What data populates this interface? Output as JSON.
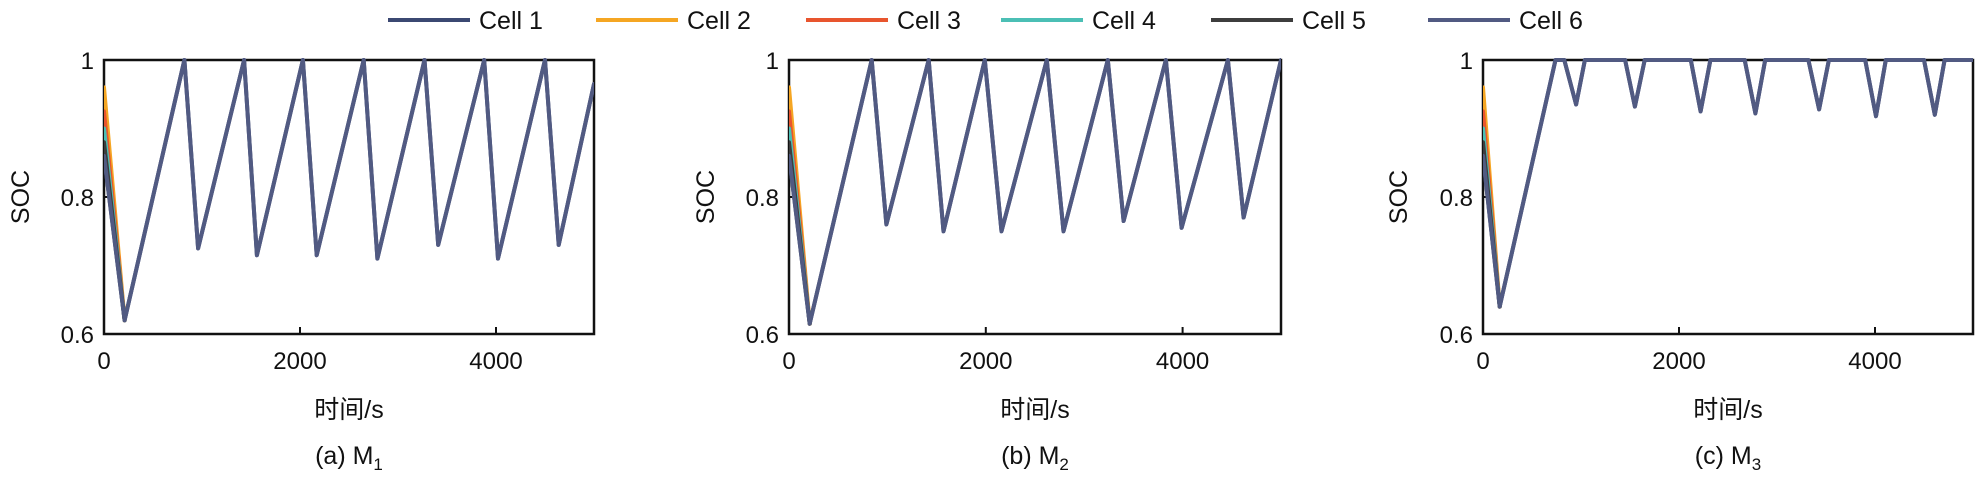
{
  "chart_data": [
    {
      "type": "line",
      "caption": "(a) M",
      "caption_sub": "1",
      "xlabel": "时间/s",
      "ylabel": "SOC",
      "xlim": [
        0,
        5000
      ],
      "ylim": [
        0.6,
        1.0
      ],
      "xticks": [
        0,
        2000,
        4000
      ],
      "yticks": [
        0.6,
        0.8,
        1.0
      ],
      "ytick_labels": [
        "0.6",
        "0.8",
        "1"
      ],
      "grid": false,
      "legend_position": "top",
      "series": [
        {
          "name": "Cell 1",
          "color": "#3b4872",
          "x": [
            0,
            210,
            820,
            960,
            1430,
            1560,
            2030,
            2170,
            2650,
            2790,
            3270,
            3410,
            3880,
            4020,
            4500,
            4640,
            5000
          ],
          "y": [
            0.86,
            0.62,
            1.0,
            0.725,
            1.0,
            0.715,
            1.0,
            0.715,
            1.0,
            0.71,
            1.0,
            0.73,
            1.0,
            0.71,
            1.0,
            0.73,
            0.965
          ]
        },
        {
          "name": "Cell 2",
          "color": "#f5a623",
          "x": [
            0,
            210
          ],
          "y": [
            0.96,
            0.62
          ]
        },
        {
          "name": "Cell 3",
          "color": "#e8552e",
          "x": [
            0,
            210
          ],
          "y": [
            0.925,
            0.62
          ]
        },
        {
          "name": "Cell 4",
          "color": "#4bbfb5",
          "x": [
            0,
            210
          ],
          "y": [
            0.9,
            0.62
          ]
        },
        {
          "name": "Cell 5",
          "color": "#3d3d3d",
          "x": [
            0,
            210
          ],
          "y": [
            0.88,
            0.62
          ]
        },
        {
          "name": "Cell 6",
          "color": "#515a82",
          "x": [
            0,
            210,
            820,
            960,
            1430,
            1560,
            2030,
            2170,
            2650,
            2790,
            3270,
            3410,
            3880,
            4020,
            4500,
            4640,
            5000
          ],
          "y": [
            0.86,
            0.62,
            1.0,
            0.725,
            1.0,
            0.715,
            1.0,
            0.715,
            1.0,
            0.71,
            1.0,
            0.73,
            1.0,
            0.71,
            1.0,
            0.73,
            0.965
          ]
        }
      ]
    },
    {
      "type": "line",
      "caption": "(b) M",
      "caption_sub": "2",
      "xlabel": "时间/s",
      "ylabel": "SOC",
      "xlim": [
        0,
        5000
      ],
      "ylim": [
        0.6,
        1.0
      ],
      "xticks": [
        0,
        2000,
        4000
      ],
      "yticks": [
        0.6,
        0.8,
        1.0
      ],
      "ytick_labels": [
        "0.6",
        "0.8",
        "1"
      ],
      "grid": false,
      "legend_position": "top",
      "series": [
        {
          "name": "Cell 1",
          "color": "#3b4872",
          "x": [
            0,
            210,
            840,
            990,
            1420,
            1570,
            1990,
            2160,
            2620,
            2790,
            3240,
            3400,
            3830,
            3990,
            4460,
            4620,
            5000
          ],
          "y": [
            0.86,
            0.615,
            1.0,
            0.76,
            1.0,
            0.75,
            1.0,
            0.75,
            1.0,
            0.75,
            1.0,
            0.765,
            1.0,
            0.755,
            1.0,
            0.77,
            1.0
          ]
        },
        {
          "name": "Cell 2",
          "color": "#f5a623",
          "x": [
            0,
            210
          ],
          "y": [
            0.96,
            0.615
          ]
        },
        {
          "name": "Cell 3",
          "color": "#e8552e",
          "x": [
            0,
            210
          ],
          "y": [
            0.925,
            0.615
          ]
        },
        {
          "name": "Cell 4",
          "color": "#4bbfb5",
          "x": [
            0,
            210
          ],
          "y": [
            0.9,
            0.615
          ]
        },
        {
          "name": "Cell 5",
          "color": "#3d3d3d",
          "x": [
            0,
            210
          ],
          "y": [
            0.88,
            0.615
          ]
        },
        {
          "name": "Cell 6",
          "color": "#515a82",
          "x": [
            0,
            210,
            840,
            990,
            1420,
            1570,
            1990,
            2160,
            2620,
            2790,
            3240,
            3400,
            3830,
            3990,
            4460,
            4620,
            5000
          ],
          "y": [
            0.86,
            0.615,
            1.0,
            0.76,
            1.0,
            0.75,
            1.0,
            0.75,
            1.0,
            0.75,
            1.0,
            0.765,
            1.0,
            0.755,
            1.0,
            0.77,
            1.0
          ]
        }
      ]
    },
    {
      "type": "line",
      "caption": "(c) M",
      "caption_sub": "3",
      "xlabel": "时间/s",
      "ylabel": "SOC",
      "xlim": [
        0,
        5000
      ],
      "ylim": [
        0.6,
        1.0
      ],
      "xticks": [
        0,
        2000,
        4000
      ],
      "yticks": [
        0.6,
        0.8,
        1.0
      ],
      "ytick_labels": [
        "0.6",
        "0.8",
        "1"
      ],
      "grid": false,
      "legend_position": "top",
      "series": [
        {
          "name": "Cell 1",
          "color": "#3b4872",
          "x": [
            0,
            170,
            740,
            830,
            950,
            1040,
            1450,
            1550,
            1650,
            2120,
            2220,
            2320,
            2670,
            2780,
            2880,
            3320,
            3430,
            3530,
            3900,
            4010,
            4110,
            4500,
            4610,
            4710,
            5000
          ],
          "y": [
            0.86,
            0.64,
            1.0,
            1.0,
            0.935,
            1.0,
            1.0,
            0.932,
            1.0,
            1.0,
            0.925,
            1.0,
            1.0,
            0.922,
            1.0,
            1.0,
            0.928,
            1.0,
            1.0,
            0.918,
            1.0,
            1.0,
            0.92,
            1.0,
            1.0
          ]
        },
        {
          "name": "Cell 2",
          "color": "#f5a623",
          "x": [
            0,
            170
          ],
          "y": [
            0.96,
            0.64
          ]
        },
        {
          "name": "Cell 3",
          "color": "#e8552e",
          "x": [
            0,
            170
          ],
          "y": [
            0.925,
            0.64
          ]
        },
        {
          "name": "Cell 4",
          "color": "#4bbfb5",
          "x": [
            0,
            170
          ],
          "y": [
            0.9,
            0.64
          ]
        },
        {
          "name": "Cell 5",
          "color": "#3d3d3d",
          "x": [
            0,
            170
          ],
          "y": [
            0.88,
            0.64
          ]
        },
        {
          "name": "Cell 6",
          "color": "#515a82",
          "x": [
            0,
            170,
            740,
            830,
            950,
            1040,
            1450,
            1550,
            1650,
            2120,
            2220,
            2320,
            2670,
            2780,
            2880,
            3320,
            3430,
            3530,
            3900,
            4010,
            4110,
            4500,
            4610,
            4710,
            5000
          ],
          "y": [
            0.86,
            0.64,
            1.0,
            1.0,
            0.935,
            1.0,
            1.0,
            0.932,
            1.0,
            1.0,
            0.925,
            1.0,
            1.0,
            0.922,
            1.0,
            1.0,
            0.928,
            1.0,
            1.0,
            0.918,
            1.0,
            1.0,
            0.92,
            1.0,
            1.0
          ]
        }
      ]
    }
  ],
  "legend": [
    {
      "label": "Cell 1",
      "color": "#3b4872"
    },
    {
      "label": "Cell 2",
      "color": "#f5a623"
    },
    {
      "label": "Cell 3",
      "color": "#e8552e"
    },
    {
      "label": "Cell 4",
      "color": "#4bbfb5"
    },
    {
      "label": "Cell 5",
      "color": "#3d3d3d"
    },
    {
      "label": "Cell 6",
      "color": "#515a82"
    }
  ]
}
